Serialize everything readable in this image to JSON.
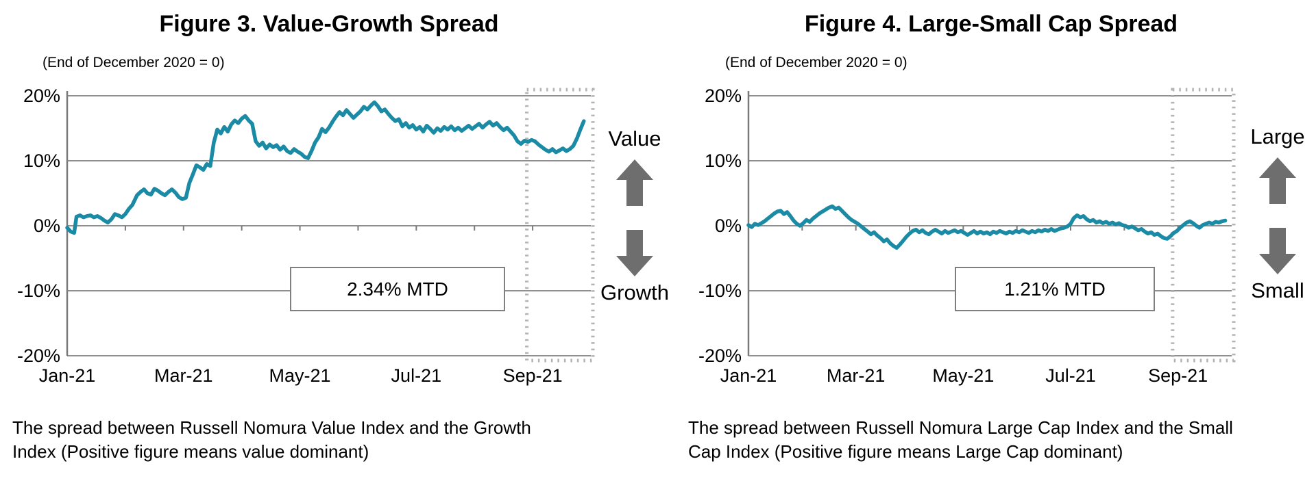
{
  "page": {
    "background": "#ffffff"
  },
  "colors": {
    "series_line": "#1b8aa5",
    "gridline": "#8f8f8f",
    "axis": "#7a7a7a",
    "highlight_box": "#b3b3b3",
    "arrow": "#6e6e6e",
    "annotation_border": "#7f7f7f",
    "text": "#000000"
  },
  "chart_data": [
    {
      "type": "line",
      "title": "Figure 3. Value-Growth Spread",
      "subtitle": "(End of December 2020 = 0)",
      "series_name": "Value minus Growth spread (%)",
      "x_unit": "months since end of December 2020 (0 = Jan-21)",
      "xlabels": [
        "Jan-21",
        "Mar-21",
        "May-21",
        "Jul-21",
        "Sep-21"
      ],
      "xlabel_months": [
        0,
        2,
        4,
        6,
        8
      ],
      "ylabels": [
        "20%",
        "10%",
        "0%",
        "-10%",
        "-20%"
      ],
      "ylim": [
        -20,
        20
      ],
      "xlim_months": [
        0,
        9
      ],
      "grid": true,
      "line_color": "#1b8aa5",
      "annotation_label": "2.34% MTD",
      "side_label_top": "Value",
      "side_label_bottom": "Growth",
      "caption_lines": [
        "The spread between Russell Nomura Value Index and the Growth",
        "Index (Positive figure means value dominant)"
      ],
      "highlight_window_months": [
        7.9,
        9.0
      ],
      "points": [
        [
          0.0,
          -0.3
        ],
        [
          0.06,
          -0.9
        ],
        [
          0.12,
          -1.1
        ],
        [
          0.16,
          1.4
        ],
        [
          0.22,
          1.6
        ],
        [
          0.28,
          1.3
        ],
        [
          0.34,
          1.5
        ],
        [
          0.4,
          1.6
        ],
        [
          0.46,
          1.3
        ],
        [
          0.52,
          1.5
        ],
        [
          0.58,
          1.2
        ],
        [
          0.64,
          0.8
        ],
        [
          0.7,
          0.5
        ],
        [
          0.76,
          1.0
        ],
        [
          0.82,
          1.8
        ],
        [
          0.88,
          1.6
        ],
        [
          0.94,
          1.3
        ],
        [
          1.0,
          1.8
        ],
        [
          1.06,
          2.6
        ],
        [
          1.12,
          3.2
        ],
        [
          1.2,
          4.7
        ],
        [
          1.26,
          5.2
        ],
        [
          1.32,
          5.6
        ],
        [
          1.38,
          5.0
        ],
        [
          1.44,
          4.8
        ],
        [
          1.5,
          5.7
        ],
        [
          1.56,
          5.4
        ],
        [
          1.62,
          5.0
        ],
        [
          1.68,
          4.7
        ],
        [
          1.74,
          5.2
        ],
        [
          1.8,
          5.6
        ],
        [
          1.86,
          5.1
        ],
        [
          1.92,
          4.4
        ],
        [
          1.98,
          4.1
        ],
        [
          2.04,
          4.3
        ],
        [
          2.1,
          6.6
        ],
        [
          2.16,
          7.9
        ],
        [
          2.22,
          9.3
        ],
        [
          2.28,
          9.0
        ],
        [
          2.34,
          8.6
        ],
        [
          2.4,
          9.5
        ],
        [
          2.46,
          9.2
        ],
        [
          2.52,
          12.8
        ],
        [
          2.58,
          14.8
        ],
        [
          2.64,
          14.2
        ],
        [
          2.7,
          15.2
        ],
        [
          2.76,
          14.5
        ],
        [
          2.82,
          15.6
        ],
        [
          2.88,
          16.2
        ],
        [
          2.94,
          15.8
        ],
        [
          3.0,
          16.5
        ],
        [
          3.06,
          16.9
        ],
        [
          3.12,
          16.2
        ],
        [
          3.18,
          15.7
        ],
        [
          3.24,
          13.0
        ],
        [
          3.3,
          12.3
        ],
        [
          3.36,
          12.8
        ],
        [
          3.42,
          11.9
        ],
        [
          3.48,
          12.5
        ],
        [
          3.54,
          12.1
        ],
        [
          3.6,
          12.4
        ],
        [
          3.66,
          11.7
        ],
        [
          3.72,
          12.2
        ],
        [
          3.78,
          11.5
        ],
        [
          3.84,
          11.2
        ],
        [
          3.9,
          11.8
        ],
        [
          3.96,
          11.4
        ],
        [
          4.02,
          11.1
        ],
        [
          4.08,
          10.6
        ],
        [
          4.14,
          10.4
        ],
        [
          4.2,
          11.5
        ],
        [
          4.26,
          12.8
        ],
        [
          4.32,
          13.6
        ],
        [
          4.38,
          14.9
        ],
        [
          4.44,
          14.4
        ],
        [
          4.5,
          15.1
        ],
        [
          4.56,
          16.0
        ],
        [
          4.62,
          16.8
        ],
        [
          4.68,
          17.5
        ],
        [
          4.74,
          17.0
        ],
        [
          4.8,
          17.8
        ],
        [
          4.86,
          17.2
        ],
        [
          4.92,
          16.6
        ],
        [
          4.98,
          17.1
        ],
        [
          5.04,
          17.6
        ],
        [
          5.1,
          18.3
        ],
        [
          5.16,
          17.9
        ],
        [
          5.22,
          18.5
        ],
        [
          5.28,
          19.0
        ],
        [
          5.34,
          18.4
        ],
        [
          5.4,
          17.6
        ],
        [
          5.46,
          17.9
        ],
        [
          5.52,
          17.2
        ],
        [
          5.58,
          16.6
        ],
        [
          5.64,
          16.1
        ],
        [
          5.7,
          16.4
        ],
        [
          5.76,
          15.3
        ],
        [
          5.82,
          15.8
        ],
        [
          5.88,
          15.1
        ],
        [
          5.94,
          15.5
        ],
        [
          6.0,
          14.8
        ],
        [
          6.06,
          15.2
        ],
        [
          6.12,
          14.5
        ],
        [
          6.18,
          15.4
        ],
        [
          6.24,
          14.9
        ],
        [
          6.3,
          14.3
        ],
        [
          6.36,
          15.0
        ],
        [
          6.42,
          14.6
        ],
        [
          6.48,
          15.2
        ],
        [
          6.54,
          14.8
        ],
        [
          6.6,
          15.3
        ],
        [
          6.66,
          14.7
        ],
        [
          6.72,
          15.1
        ],
        [
          6.78,
          14.6
        ],
        [
          6.84,
          15.0
        ],
        [
          6.9,
          15.4
        ],
        [
          6.96,
          14.9
        ],
        [
          7.02,
          15.3
        ],
        [
          7.08,
          15.7
        ],
        [
          7.14,
          15.1
        ],
        [
          7.2,
          15.6
        ],
        [
          7.26,
          16.0
        ],
        [
          7.32,
          15.4
        ],
        [
          7.38,
          15.8
        ],
        [
          7.44,
          15.2
        ],
        [
          7.5,
          14.7
        ],
        [
          7.56,
          15.1
        ],
        [
          7.62,
          14.5
        ],
        [
          7.68,
          13.9
        ],
        [
          7.74,
          13.0
        ],
        [
          7.8,
          12.6
        ],
        [
          7.86,
          13.1
        ],
        [
          7.92,
          12.9
        ],
        [
          7.98,
          13.2
        ],
        [
          8.04,
          13.0
        ],
        [
          8.1,
          12.5
        ],
        [
          8.16,
          12.1
        ],
        [
          8.22,
          11.7
        ],
        [
          8.28,
          11.4
        ],
        [
          8.34,
          11.8
        ],
        [
          8.4,
          11.3
        ],
        [
          8.46,
          11.6
        ],
        [
          8.52,
          11.9
        ],
        [
          8.58,
          11.5
        ],
        [
          8.64,
          11.8
        ],
        [
          8.7,
          12.3
        ],
        [
          8.76,
          13.4
        ],
        [
          8.82,
          14.8
        ],
        [
          8.88,
          16.1
        ]
      ]
    },
    {
      "type": "line",
      "title": "Figure 4. Large-Small Cap Spread",
      "subtitle": "(End of December 2020 = 0)",
      "series_name": "Large Cap minus Small Cap spread (%)",
      "x_unit": "months since end of December 2020 (0 = Jan-21)",
      "xlabels": [
        "Jan-21",
        "Mar-21",
        "May-21",
        "Jul-21",
        "Sep-21"
      ],
      "xlabel_months": [
        0,
        2,
        4,
        6,
        8
      ],
      "ylabels": [
        "20%",
        "10%",
        "0%",
        "-10%",
        "-20%"
      ],
      "ylim": [
        -20,
        20
      ],
      "xlim_months": [
        0,
        9
      ],
      "grid": true,
      "line_color": "#1b8aa5",
      "annotation_label": "1.21% MTD",
      "side_label_top": "Large",
      "side_label_bottom": "Small",
      "caption_lines": [
        "The spread between Russell Nomura Large Cap Index and the Small",
        "Cap Index (Positive figure means Large Cap dominant)"
      ],
      "highlight_window_months": [
        7.9,
        9.0
      ],
      "points": [
        [
          0.0,
          0.1
        ],
        [
          0.06,
          -0.2
        ],
        [
          0.12,
          0.3
        ],
        [
          0.18,
          0.1
        ],
        [
          0.24,
          0.4
        ],
        [
          0.3,
          0.7
        ],
        [
          0.36,
          1.1
        ],
        [
          0.42,
          1.5
        ],
        [
          0.48,
          1.9
        ],
        [
          0.54,
          2.2
        ],
        [
          0.6,
          2.3
        ],
        [
          0.66,
          1.8
        ],
        [
          0.72,
          2.1
        ],
        [
          0.78,
          1.5
        ],
        [
          0.84,
          0.8
        ],
        [
          0.9,
          0.3
        ],
        [
          0.96,
          0.0
        ],
        [
          1.02,
          0.4
        ],
        [
          1.08,
          0.9
        ],
        [
          1.14,
          0.6
        ],
        [
          1.2,
          1.1
        ],
        [
          1.26,
          1.5
        ],
        [
          1.32,
          1.9
        ],
        [
          1.38,
          2.2
        ],
        [
          1.44,
          2.5
        ],
        [
          1.5,
          2.8
        ],
        [
          1.56,
          3.0
        ],
        [
          1.62,
          2.6
        ],
        [
          1.68,
          2.8
        ],
        [
          1.74,
          2.3
        ],
        [
          1.8,
          1.8
        ],
        [
          1.86,
          1.3
        ],
        [
          1.92,
          0.9
        ],
        [
          1.98,
          0.6
        ],
        [
          2.04,
          0.3
        ],
        [
          2.1,
          -0.1
        ],
        [
          2.16,
          -0.5
        ],
        [
          2.22,
          -0.9
        ],
        [
          2.28,
          -1.3
        ],
        [
          2.34,
          -1.0
        ],
        [
          2.4,
          -1.5
        ],
        [
          2.46,
          -1.9
        ],
        [
          2.52,
          -2.4
        ],
        [
          2.58,
          -2.1
        ],
        [
          2.64,
          -2.7
        ],
        [
          2.7,
          -3.1
        ],
        [
          2.76,
          -3.4
        ],
        [
          2.82,
          -2.9
        ],
        [
          2.88,
          -2.3
        ],
        [
          2.94,
          -1.7
        ],
        [
          3.0,
          -1.2
        ],
        [
          3.06,
          -0.8
        ],
        [
          3.12,
          -0.6
        ],
        [
          3.18,
          -1.0
        ],
        [
          3.24,
          -0.7
        ],
        [
          3.3,
          -1.1
        ],
        [
          3.36,
          -1.3
        ],
        [
          3.42,
          -0.9
        ],
        [
          3.48,
          -0.6
        ],
        [
          3.54,
          -0.9
        ],
        [
          3.6,
          -1.2
        ],
        [
          3.66,
          -0.8
        ],
        [
          3.72,
          -1.1
        ],
        [
          3.78,
          -0.9
        ],
        [
          3.84,
          -0.7
        ],
        [
          3.9,
          -1.0
        ],
        [
          3.96,
          -0.8
        ],
        [
          4.02,
          -1.1
        ],
        [
          4.08,
          -1.4
        ],
        [
          4.14,
          -1.1
        ],
        [
          4.2,
          -0.8
        ],
        [
          4.26,
          -1.2
        ],
        [
          4.32,
          -0.9
        ],
        [
          4.38,
          -1.2
        ],
        [
          4.44,
          -1.0
        ],
        [
          4.5,
          -1.3
        ],
        [
          4.56,
          -0.9
        ],
        [
          4.62,
          -1.1
        ],
        [
          4.68,
          -0.8
        ],
        [
          4.74,
          -1.0
        ],
        [
          4.8,
          -1.2
        ],
        [
          4.86,
          -0.9
        ],
        [
          4.92,
          -1.1
        ],
        [
          4.98,
          -0.8
        ],
        [
          5.04,
          -1.0
        ],
        [
          5.1,
          -0.7
        ],
        [
          5.16,
          -0.9
        ],
        [
          5.22,
          -1.1
        ],
        [
          5.28,
          -0.8
        ],
        [
          5.34,
          -1.0
        ],
        [
          5.4,
          -0.7
        ],
        [
          5.46,
          -0.9
        ],
        [
          5.52,
          -0.6
        ],
        [
          5.58,
          -0.8
        ],
        [
          5.64,
          -0.5
        ],
        [
          5.7,
          -0.8
        ],
        [
          5.76,
          -0.6
        ],
        [
          5.82,
          -0.4
        ],
        [
          5.88,
          -0.3
        ],
        [
          5.94,
          -0.1
        ],
        [
          6.0,
          0.3
        ],
        [
          6.06,
          1.2
        ],
        [
          6.12,
          1.6
        ],
        [
          6.18,
          1.3
        ],
        [
          6.24,
          1.5
        ],
        [
          6.3,
          1.0
        ],
        [
          6.36,
          0.7
        ],
        [
          6.42,
          0.9
        ],
        [
          6.48,
          0.5
        ],
        [
          6.54,
          0.7
        ],
        [
          6.6,
          0.4
        ],
        [
          6.66,
          0.6
        ],
        [
          6.72,
          0.3
        ],
        [
          6.78,
          0.5
        ],
        [
          6.84,
          0.2
        ],
        [
          6.9,
          0.4
        ],
        [
          6.96,
          0.1
        ],
        [
          7.02,
          0.0
        ],
        [
          7.08,
          -0.3
        ],
        [
          7.14,
          -0.1
        ],
        [
          7.2,
          -0.4
        ],
        [
          7.26,
          -0.7
        ],
        [
          7.32,
          -0.5
        ],
        [
          7.38,
          -0.9
        ],
        [
          7.44,
          -1.2
        ],
        [
          7.5,
          -1.0
        ],
        [
          7.56,
          -1.4
        ],
        [
          7.62,
          -1.2
        ],
        [
          7.68,
          -1.6
        ],
        [
          7.74,
          -1.9
        ],
        [
          7.8,
          -2.0
        ],
        [
          7.86,
          -1.6
        ],
        [
          7.92,
          -1.1
        ],
        [
          7.98,
          -0.8
        ],
        [
          8.04,
          -0.3
        ],
        [
          8.1,
          0.1
        ],
        [
          8.16,
          0.5
        ],
        [
          8.22,
          0.7
        ],
        [
          8.28,
          0.4
        ],
        [
          8.34,
          0.0
        ],
        [
          8.4,
          -0.3
        ],
        [
          8.46,
          0.1
        ],
        [
          8.52,
          0.3
        ],
        [
          8.58,
          0.5
        ],
        [
          8.64,
          0.3
        ],
        [
          8.7,
          0.6
        ],
        [
          8.76,
          0.5
        ],
        [
          8.82,
          0.7
        ],
        [
          8.88,
          0.8
        ]
      ]
    }
  ]
}
